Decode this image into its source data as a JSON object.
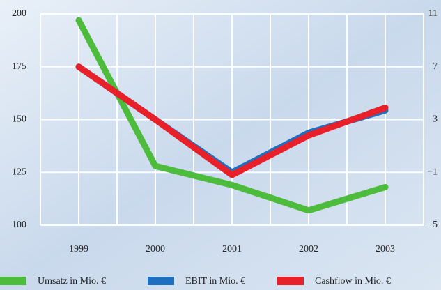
{
  "chart_data": {
    "type": "line",
    "categories": [
      "1999",
      "2000",
      "2001",
      "2002",
      "2003"
    ],
    "series": [
      {
        "name": "Umsatz in Mio. €",
        "color": "#4dbb3c",
        "values": [
          197,
          128,
          119,
          107,
          118
        ]
      },
      {
        "name": "EBIT in Mio. €",
        "color": "#1f6fc0",
        "axis": "y2",
        "values": [
          7,
          3,
          -1,
          2,
          3.7
        ]
      },
      {
        "name": "Cashflow in Mio. €",
        "color": "#e8202a",
        "axis": "y2",
        "values": [
          7,
          3,
          -1.2,
          1.8,
          3.9
        ]
      }
    ],
    "ylim": [
      100,
      200
    ],
    "yticks": [
      100,
      125,
      150,
      175,
      200
    ],
    "y2lim": [
      -5,
      11
    ],
    "y2ticks": [
      {
        "value": -5,
        "label": "−5"
      },
      {
        "value": -1,
        "label": "−1"
      },
      3,
      7,
      11
    ],
    "grid": true
  }
}
